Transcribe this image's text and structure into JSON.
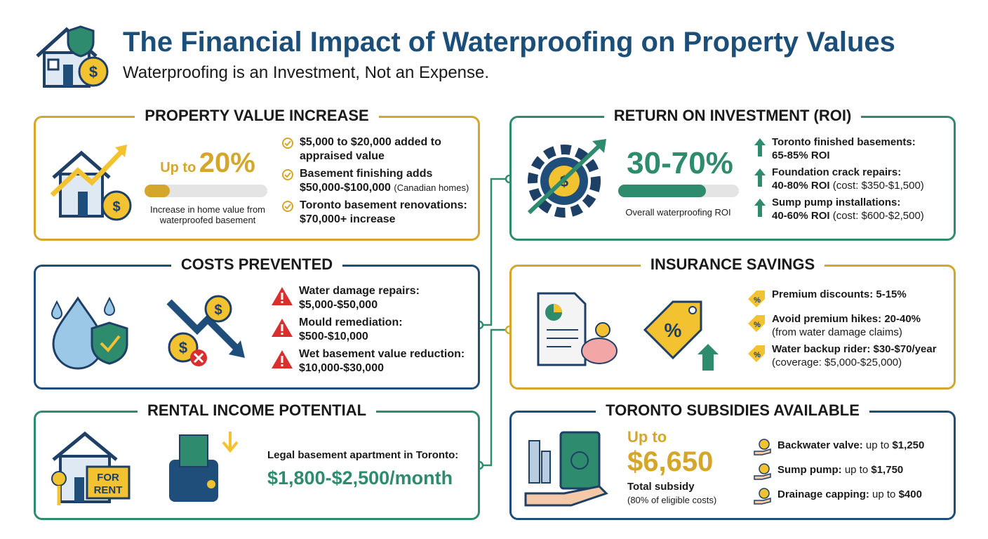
{
  "header": {
    "title": "The Financial Impact of Waterproofing on Property Values",
    "subtitle": "Waterproofing is an Investment, Not an Expense."
  },
  "panels": {
    "property_value": {
      "heading": "PROPERTY VALUE INCREASE",
      "stat_prefix": "Up to",
      "stat": "20%",
      "caption": "Increase in home value from waterproofed basement",
      "items": [
        {
          "text": "$5,000 to $20,000 added to appraised value"
        },
        {
          "text": "Basement finishing adds $50,000-$100,000",
          "note": "(Canadian homes)"
        },
        {
          "text": "Toronto basement renovations: $70,000+ increase"
        }
      ]
    },
    "roi": {
      "heading": "RETURN ON INVESTMENT (ROI)",
      "stat": "30-70%",
      "caption": "Overall waterproofing ROI",
      "items": [
        {
          "title": "Toronto finished basements:",
          "detail": "65-85% ROI"
        },
        {
          "title": "Foundation crack repairs:",
          "detail": "40-80% ROI",
          "note": "(cost: $350-$1,500)"
        },
        {
          "title": "Sump pump installations:",
          "detail": "40-60% ROI",
          "note": "(cost: $600-$2,500)"
        }
      ]
    },
    "costs_prevented": {
      "heading": "COSTS PREVENTED",
      "items": [
        {
          "title": "Water damage repairs:",
          "detail": "$5,000-$50,000"
        },
        {
          "title": "Mould remediation:",
          "detail": "$500-$10,000"
        },
        {
          "title": "Wet basement value reduction:",
          "detail": "$10,000-$30,000"
        }
      ]
    },
    "insurance": {
      "heading": "INSURANCE SAVINGS",
      "items": [
        {
          "title": "Premium discounts: 5-15%"
        },
        {
          "title": "Avoid premium hikes: 20-40%",
          "note": "(from water damage claims)"
        },
        {
          "title": "Water backup rider: $30-$70/year",
          "note": "(coverage: $5,000-$25,000)"
        }
      ]
    },
    "rental": {
      "heading": "RENTAL INCOME POTENTIAL",
      "caption": "Legal basement apartment in Toronto:",
      "stat": "$1,800-$2,500/month",
      "sign": "FOR RENT"
    },
    "subsidies": {
      "heading": "TORONTO SUBSIDIES AVAILABLE",
      "stat_prefix": "Up to",
      "stat": "$6,650",
      "caption": "Total subsidy",
      "note": "(80% of eligible costs)",
      "items": [
        {
          "label": "Backwater valve:",
          "prefix": "up to",
          "amount": "$1,250"
        },
        {
          "label": "Sump pump:",
          "prefix": "up to",
          "amount": "$1,750"
        },
        {
          "label": "Drainage capping:",
          "prefix": "up to",
          "amount": "$400"
        }
      ]
    }
  }
}
